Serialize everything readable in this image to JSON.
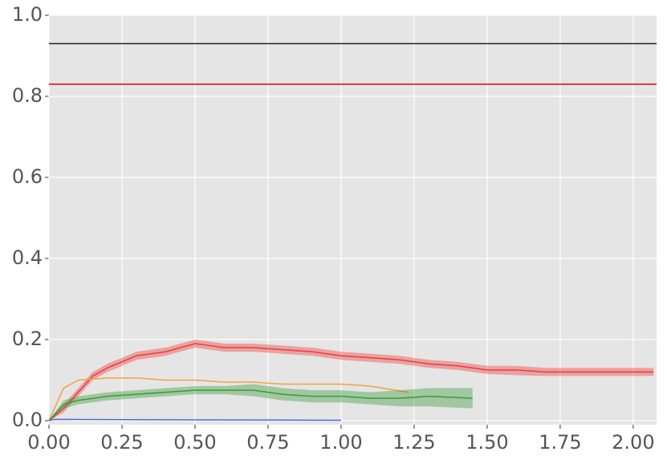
{
  "chart_data": {
    "type": "line",
    "grid": true,
    "background": "#e5e5e5",
    "xlim": [
      0,
      2.08
    ],
    "ylim": [
      -0.01,
      1.0
    ],
    "xticks": [
      {
        "value": 0,
        "label": "0.00"
      },
      0.25,
      {
        "value": 0.5,
        "label": "0.50"
      },
      0.75,
      {
        "value": 1.0,
        "label": "1.00"
      },
      1.25,
      {
        "value": 1.5,
        "label": "1.50"
      },
      1.75,
      {
        "value": 2.0,
        "label": "2.00"
      }
    ],
    "yticks": [
      {
        "value": 0,
        "label": "0.0"
      },
      0.2,
      0.4,
      0.6,
      0.8,
      {
        "value": 1.0,
        "label": "1.0"
      }
    ],
    "hlines": [
      {
        "value": 0.93,
        "color": "#222222"
      },
      {
        "value": 0.83,
        "color": "#e8000b"
      }
    ],
    "series": [
      {
        "color": "#f03b3b",
        "x": [
          0,
          0.05,
          0.1,
          0.15,
          0.2,
          0.3,
          0.4,
          0.5,
          0.6,
          0.7,
          0.8,
          0.9,
          1.0,
          1.1,
          1.2,
          1.3,
          1.4,
          1.5,
          1.6,
          1.7,
          1.8,
          1.9,
          2.0,
          2.07
        ],
        "values": [
          0,
          0.03,
          0.07,
          0.11,
          0.13,
          0.16,
          0.17,
          0.19,
          0.18,
          0.18,
          0.175,
          0.17,
          0.16,
          0.155,
          0.15,
          0.14,
          0.135,
          0.125,
          0.125,
          0.12,
          0.12,
          0.12,
          0.12,
          0.12
        ],
        "lower": [
          0,
          0.02,
          0.06,
          0.1,
          0.12,
          0.15,
          0.16,
          0.18,
          0.17,
          0.17,
          0.165,
          0.16,
          0.15,
          0.145,
          0.14,
          0.13,
          0.125,
          0.115,
          0.112,
          0.11,
          0.11,
          0.11,
          0.11,
          0.11
        ],
        "upper": [
          0,
          0.04,
          0.08,
          0.12,
          0.14,
          0.17,
          0.18,
          0.2,
          0.19,
          0.19,
          0.185,
          0.18,
          0.17,
          0.165,
          0.16,
          0.15,
          0.145,
          0.135,
          0.135,
          0.13,
          0.13,
          0.13,
          0.13,
          0.13
        ]
      },
      {
        "color": "#f5a040",
        "x": [
          0,
          0.05,
          0.1,
          0.2,
          0.3,
          0.4,
          0.5,
          0.6,
          0.7,
          0.8,
          0.9,
          1.0,
          1.1,
          1.23
        ],
        "values": [
          0,
          0.08,
          0.1,
          0.105,
          0.105,
          0.1,
          0.1,
          0.095,
          0.095,
          0.09,
          0.09,
          0.09,
          0.085,
          0.07
        ]
      },
      {
        "color": "#3a9a3a",
        "x": [
          0,
          0.05,
          0.1,
          0.2,
          0.3,
          0.4,
          0.5,
          0.6,
          0.7,
          0.8,
          0.9,
          1.0,
          1.1,
          1.2,
          1.3,
          1.45
        ],
        "values": [
          0,
          0.04,
          0.05,
          0.06,
          0.065,
          0.07,
          0.075,
          0.075,
          0.075,
          0.065,
          0.06,
          0.06,
          0.055,
          0.055,
          0.06,
          0.055
        ],
        "lower": [
          0,
          0.03,
          0.04,
          0.05,
          0.055,
          0.06,
          0.065,
          0.065,
          0.06,
          0.05,
          0.045,
          0.045,
          0.04,
          0.035,
          0.035,
          0.03
        ],
        "upper": [
          0,
          0.05,
          0.06,
          0.07,
          0.075,
          0.08,
          0.085,
          0.085,
          0.09,
          0.08,
          0.075,
          0.075,
          0.07,
          0.075,
          0.08,
          0.08
        ]
      },
      {
        "color": "#5566dd",
        "x": [
          0,
          0.02,
          0.5,
          1.0
        ],
        "values": [
          0,
          0.003,
          0.002,
          0.001
        ]
      }
    ]
  }
}
